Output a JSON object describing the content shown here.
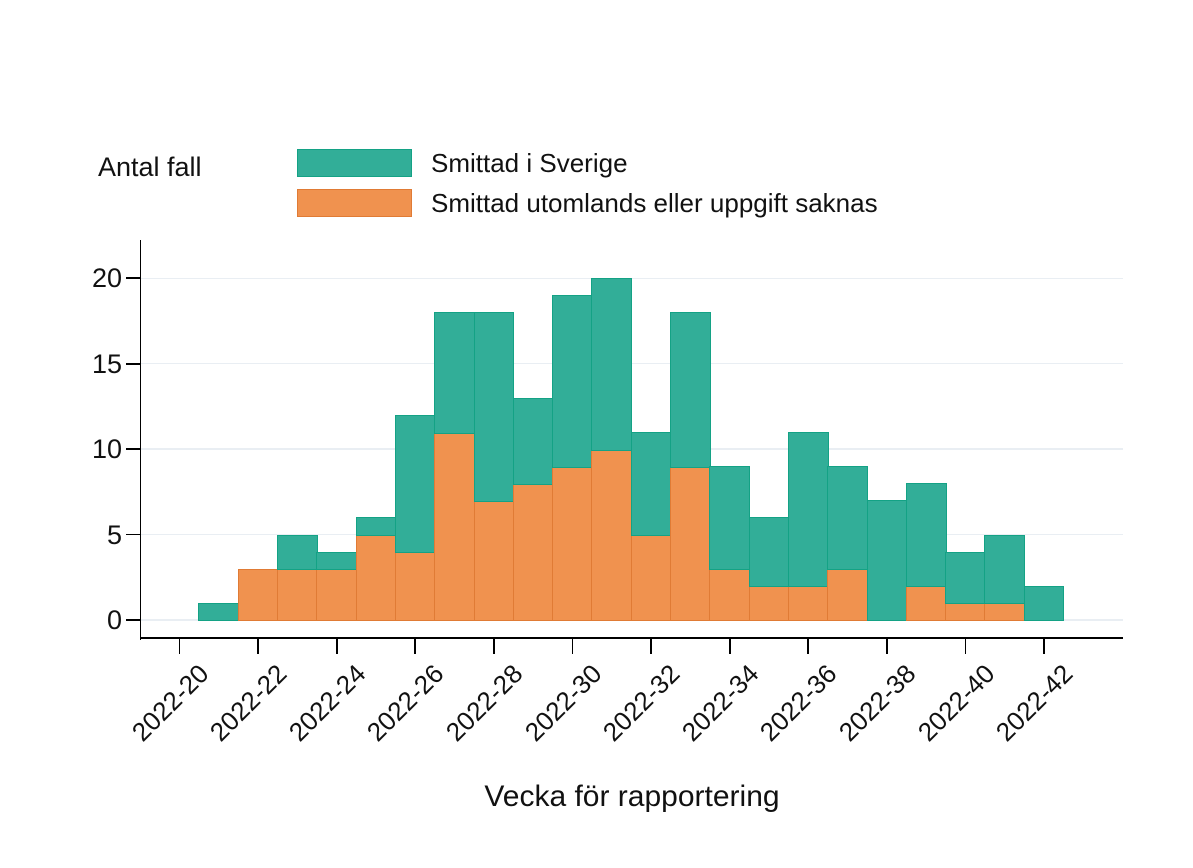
{
  "chart_data": {
    "type": "bar",
    "stacked": true,
    "ylabel": "Antal fall",
    "xlabel": "Vecka för rapportering",
    "ylim": [
      0,
      20
    ],
    "yticks": [
      0,
      5,
      10,
      15,
      20
    ],
    "grid": true,
    "legend_position": "top-left",
    "categories": [
      "2022-21",
      "2022-22",
      "2022-23",
      "2022-24",
      "2022-25",
      "2022-26",
      "2022-27",
      "2022-28",
      "2022-29",
      "2022-30",
      "2022-31",
      "2022-32",
      "2022-33",
      "2022-34",
      "2022-35",
      "2022-36",
      "2022-37",
      "2022-38",
      "2022-39",
      "2022-40",
      "2022-41",
      "2022-42"
    ],
    "xtick_labels": [
      "2022-20",
      "2022-22",
      "2022-24",
      "2022-26",
      "2022-28",
      "2022-30",
      "2022-32",
      "2022-34",
      "2022-36",
      "2022-38",
      "2022-40",
      "2022-42"
    ],
    "series": [
      {
        "name": "Smittad utomlands eller uppgift saknas",
        "color": "#f0924f",
        "border_color": "#e07b35",
        "values": [
          0,
          3,
          3,
          3,
          5,
          4,
          11,
          7,
          8,
          9,
          10,
          5,
          9,
          3,
          2,
          2,
          3,
          0,
          2,
          1,
          1,
          0
        ]
      },
      {
        "name": "Smittad i Sverige",
        "color": "#32ae98",
        "border_color": "#14a285",
        "values": [
          1,
          0,
          2,
          1,
          1,
          8,
          7,
          11,
          5,
          10,
          10,
          6,
          9,
          6,
          4,
          9,
          6,
          7,
          6,
          3,
          4,
          2
        ]
      }
    ],
    "legend_order": [
      1,
      0
    ]
  },
  "style_colors": {
    "gridline": "#e9eef3",
    "axis": "#000000",
    "background": "#ffffff"
  }
}
